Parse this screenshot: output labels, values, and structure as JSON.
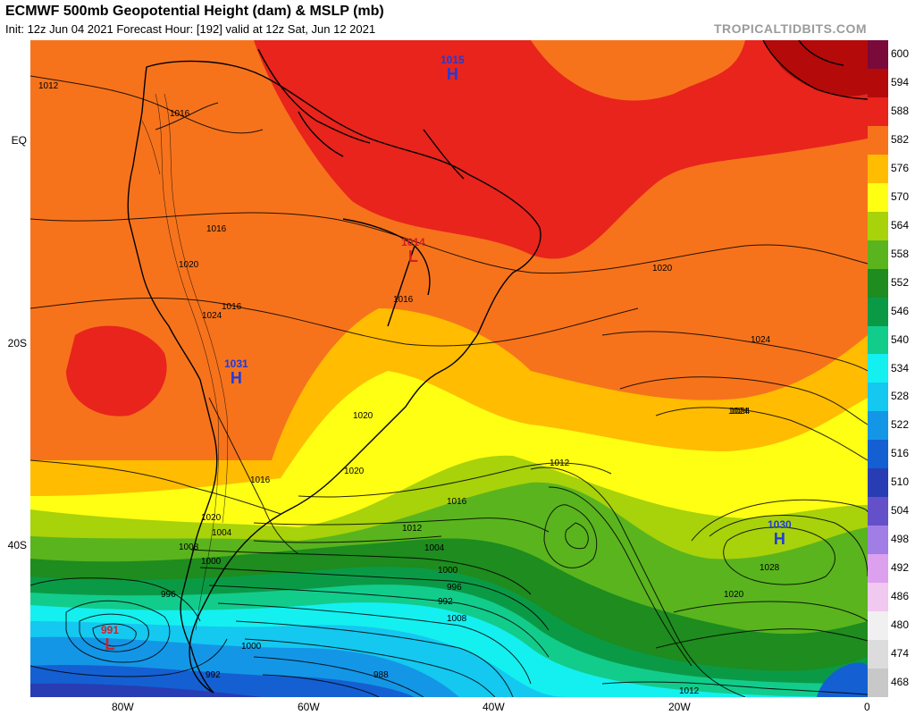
{
  "header": {
    "title": "ECMWF 500mb Geopotential Height (dam) & MSLP (mb)",
    "subtitle": "Init: 12z Jun 04 2021   Forecast Hour: [192]   valid at 12z Sat, Jun 12 2021",
    "brand": "TROPICALTIDBITS.COM"
  },
  "axes": {
    "lat_labels": [
      "EQ",
      "20S",
      "40S"
    ],
    "lon_labels": [
      "80W",
      "60W",
      "40W",
      "20W",
      "0"
    ]
  },
  "colorbar": {
    "levels": [
      "600",
      "594",
      "588",
      "582",
      "576",
      "570",
      "564",
      "558",
      "552",
      "546",
      "540",
      "534",
      "528",
      "522",
      "516",
      "510",
      "504",
      "498",
      "492",
      "486",
      "480",
      "474",
      "468"
    ],
    "colors": [
      "#7a0a3a",
      "#b40a0a",
      "#e8241c",
      "#f6731c",
      "#ffbc00",
      "#ffff14",
      "#a8d20a",
      "#5ab41e",
      "#1e8c1e",
      "#0a9a46",
      "#12cc8c",
      "#14f0f0",
      "#14c8f0",
      "#1496e6",
      "#1460d2",
      "#283cb4",
      "#6450c8",
      "#a07ee6",
      "#dca0ee",
      "#f0c8f0",
      "#f0f0f0",
      "#dcdcdc",
      "#c8c8c8"
    ]
  },
  "pressure_centers": [
    {
      "value": "1015",
      "letter": "H",
      "type": "high"
    },
    {
      "value": "1014",
      "letter": "L",
      "type": "low"
    },
    {
      "value": "1031",
      "letter": "H",
      "type": "high"
    },
    {
      "value": "1030",
      "letter": "H",
      "type": "high"
    },
    {
      "value": "991",
      "letter": "L",
      "type": "low"
    }
  ],
  "isobar_labels": [
    "1012",
    "1016",
    "1016",
    "1020",
    "1024",
    "1016",
    "1016",
    "1020",
    "1024",
    "1020",
    "1016",
    "1024",
    "1020",
    "1012",
    "1016",
    "1012",
    "1008",
    "1004",
    "1000",
    "996",
    "992",
    "1008",
    "1004",
    "1000",
    "996",
    "992",
    "988",
    "1000",
    "1020",
    "1024",
    "1028",
    "1020",
    "1012"
  ]
}
